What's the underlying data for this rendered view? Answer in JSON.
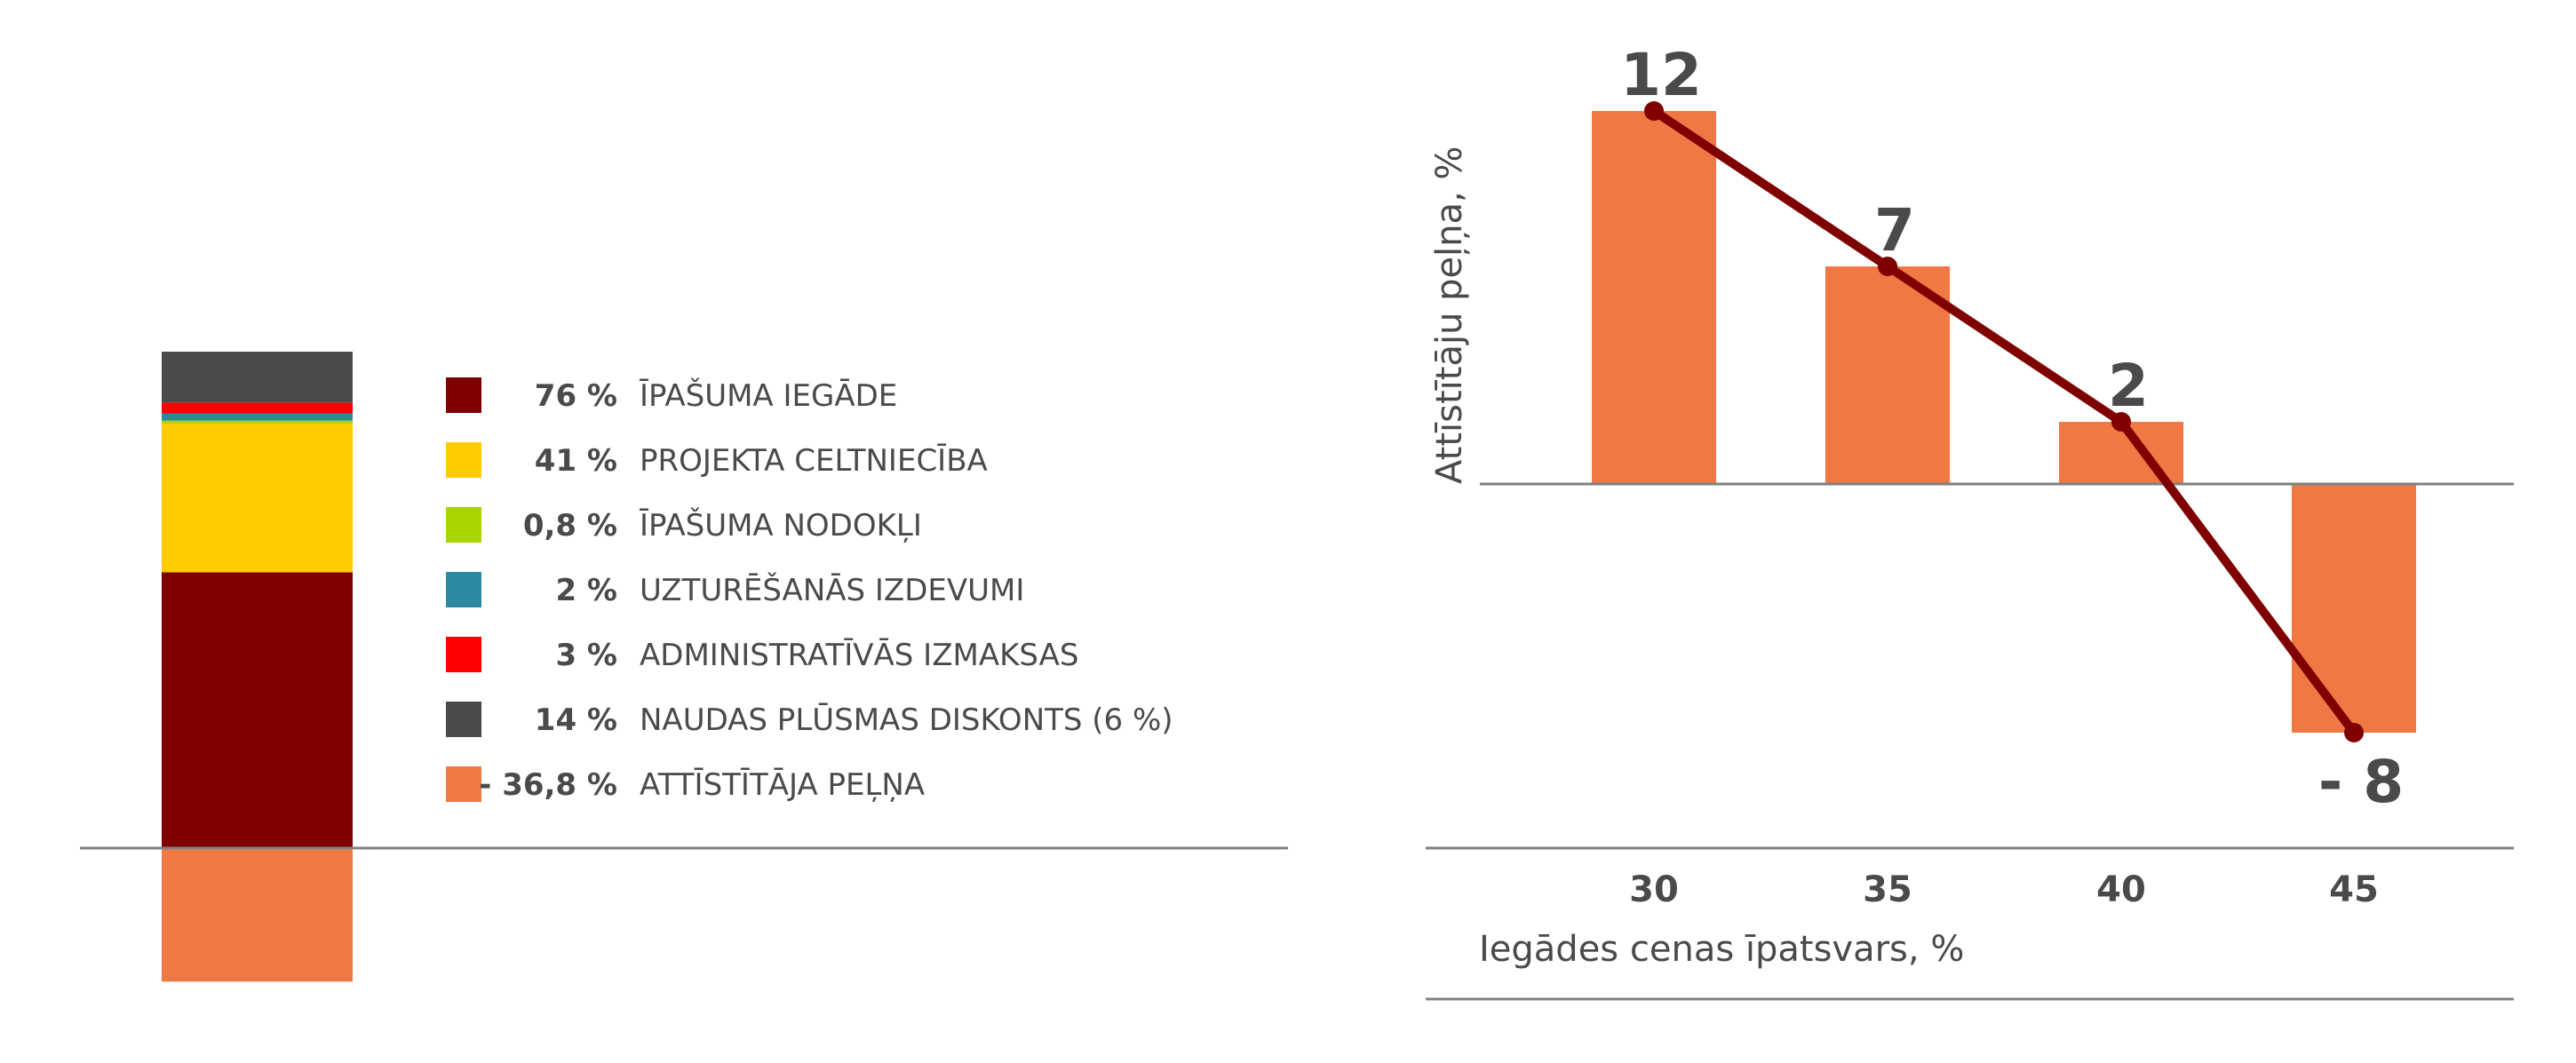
{
  "chart_data": [
    {
      "type": "bar",
      "stacked": true,
      "units": "%",
      "series": [
        {
          "name": "ĪPAŠUMA IEGĀDE",
          "label": "76 %",
          "value": 76,
          "color": "#7f0000"
        },
        {
          "name": "PROJEKTA CELTNIECĪBA",
          "label": "41 %",
          "value": 41,
          "color": "#ffcc00"
        },
        {
          "name": "ĪPAŠUMA NODOKĻI",
          "label": "0,8 %",
          "value": 0.8,
          "color": "#a8d400"
        },
        {
          "name": "UZTURĒŠANĀS IZDEVUMI",
          "label": "2 %",
          "value": 2,
          "color": "#2b8aa0"
        },
        {
          "name": "ADMINISTRATĪVĀS IZMAKSAS",
          "label": "3 %",
          "value": 3,
          "color": "#ff0000"
        },
        {
          "name": "NAUDAS PLŪSMAS DISKONTS (6 %)",
          "label": "14 %",
          "value": 14,
          "color": "#4a4a4a"
        },
        {
          "name": "ATTĪSTĪTĀJA PEĻŅA",
          "label": "- 36,8 %",
          "value": -36.8,
          "color": "#ef7844"
        }
      ]
    },
    {
      "type": "bar",
      "overlay": "line",
      "categories": [
        "30",
        "35",
        "40",
        "45"
      ],
      "values": [
        12,
        7,
        2,
        -8
      ],
      "value_labels": [
        "12",
        "7",
        "2",
        "- 8"
      ],
      "xlabel": "Iegādes cenas īpatsvars, %",
      "ylabel": "Attīstītāju peļņa, %",
      "ylim": [
        -8,
        12
      ],
      "bar_color": "#ef7844",
      "line_color": "#7f0000"
    }
  ]
}
